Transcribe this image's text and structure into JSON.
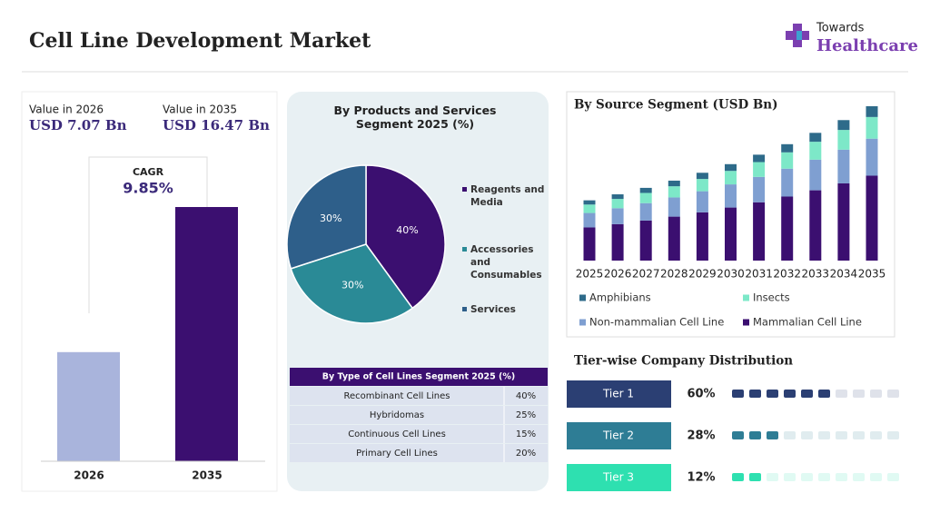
{
  "header": {
    "title": "Cell Line Development Market",
    "logo_top": "Towards",
    "logo_bottom": "Healthcare"
  },
  "chart_data": [
    {
      "type": "bar",
      "categories": [
        "2026",
        "2035"
      ],
      "captions": [
        "Value in 2026",
        "Value in 2035"
      ],
      "values": [
        7.07,
        16.47
      ],
      "value_labels": [
        "USD 7.07 Bn",
        "USD 16.47 Bn"
      ],
      "colors": [
        "#a9b4dc",
        "#3b0f70"
      ],
      "annotation": {
        "label": "CAGR",
        "value": "9.85%"
      }
    },
    {
      "type": "pie",
      "title": "By Products and Services Segment 2025 (%)",
      "categories": [
        "Reagents and Media",
        "Accessories and Consumables",
        "Services"
      ],
      "values": [
        40,
        30,
        30
      ],
      "value_labels": [
        "40%",
        "30%",
        "30%"
      ],
      "colors": [
        "#3b0f70",
        "#2a8a96",
        "#2e5f8a"
      ]
    },
    {
      "type": "stacked_bar",
      "title": "By Source Segment (USD Bn)",
      "categories": [
        "2025",
        "2026",
        "2027",
        "2028",
        "2029",
        "2030",
        "2031",
        "2032",
        "2033",
        "2034",
        "2035"
      ],
      "series": [
        {
          "name": "Mammalian Cell Line",
          "color": "#3b0f70",
          "values": [
            3.54,
            3.89,
            4.27,
            4.69,
            5.15,
            5.66,
            6.22,
            6.83,
            7.5,
            8.24,
            9.06
          ]
        },
        {
          "name": "Non-mammalian Cell Line",
          "color": "#7f9fd1",
          "values": [
            1.54,
            1.7,
            1.86,
            2.05,
            2.25,
            2.47,
            2.71,
            2.98,
            3.27,
            3.6,
            3.95
          ]
        },
        {
          "name": "Insects",
          "color": "#7de8c8",
          "values": [
            0.9,
            0.99,
            1.09,
            1.19,
            1.31,
            1.44,
            1.58,
            1.74,
            1.91,
            2.1,
            2.31
          ]
        },
        {
          "name": "Amphibians",
          "color": "#2e6b8a",
          "values": [
            0.45,
            0.49,
            0.54,
            0.6,
            0.66,
            0.72,
            0.79,
            0.87,
            0.95,
            1.05,
            1.15
          ]
        }
      ]
    },
    {
      "type": "dots",
      "title": "Tier-wise Company Distribution",
      "categories": [
        "Tier 1",
        "Tier 2",
        "Tier 3"
      ],
      "values": [
        60,
        28,
        12
      ],
      "value_labels": [
        "60%",
        "28%",
        "12%"
      ],
      "colors": [
        "#2b3f73",
        "#2e7d95",
        "#2ee0b0"
      ]
    }
  ],
  "table": {
    "title": "By Type of Cell Lines Segment 2025 (%)",
    "rows": [
      [
        "Recombinant Cell Lines",
        "40%"
      ],
      [
        "Hybridomas",
        "25%"
      ],
      [
        "Continuous Cell Lines",
        "15%"
      ],
      [
        "Primary Cell Lines",
        "20%"
      ]
    ]
  }
}
